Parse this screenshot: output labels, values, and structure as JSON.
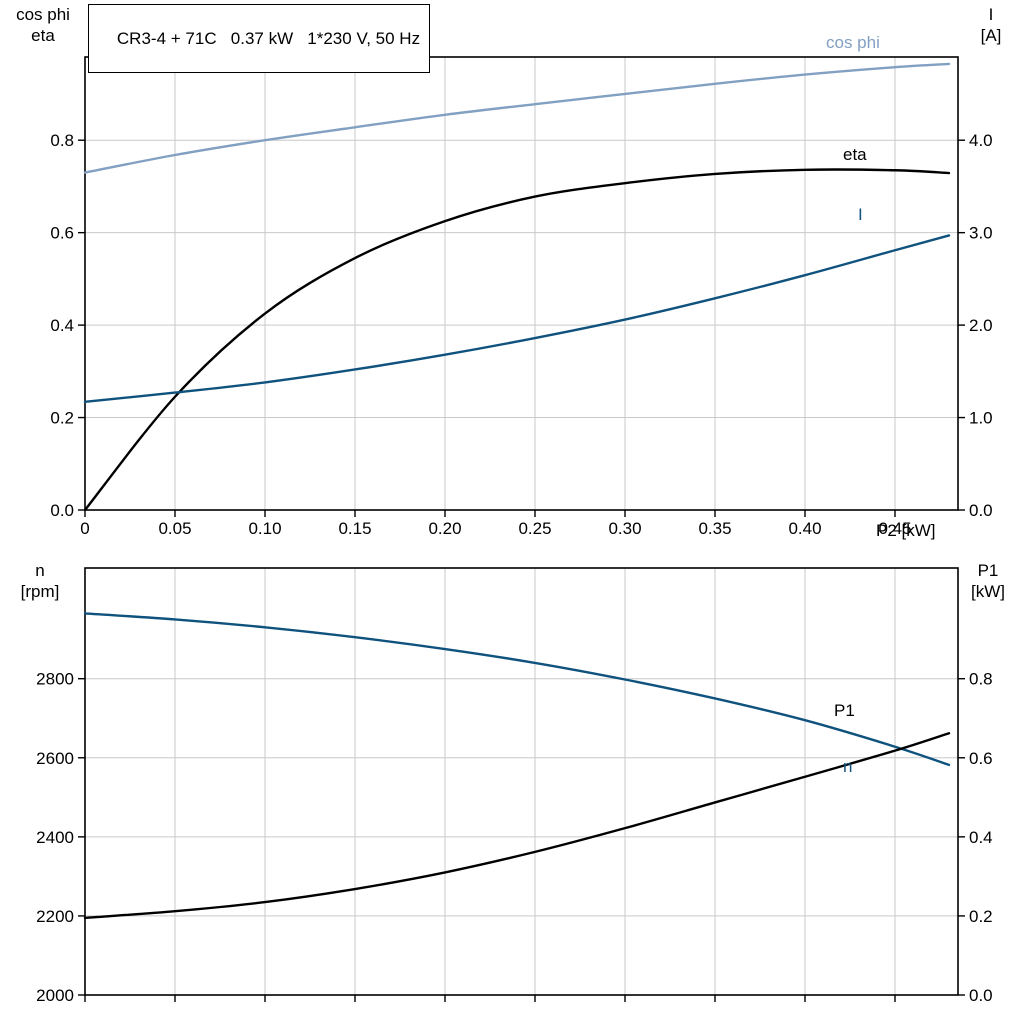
{
  "colors": {
    "light_blue": "#82a0c2",
    "dark_blue": "#0f527e",
    "black": "#000000",
    "grid": "#c9c9c9",
    "frame": "#000000"
  },
  "chart_data": [
    {
      "id": "motor-curves-top",
      "type": "line",
      "title": "CR3-4 + 71C   0.37 kW   1*230 V, 50 Hz",
      "xlabel": "P2 [kW]",
      "xlim": [
        0,
        0.485
      ],
      "x_ticks": [
        0,
        0.05,
        0.1,
        0.15,
        0.2,
        0.25,
        0.3,
        0.35,
        0.4,
        0.45
      ],
      "x_tick_labels": [
        "0",
        "0.05",
        "0.10",
        "0.15",
        "0.20",
        "0.25",
        "0.30",
        "0.35",
        "0.40",
        "0.45"
      ],
      "left_axis": {
        "title_lines": [
          "cos phi",
          "eta"
        ],
        "lim": [
          0,
          0.98
        ],
        "ticks": [
          0,
          0.2,
          0.4,
          0.6,
          0.8
        ],
        "tick_labels": [
          "0.0",
          "0.2",
          "0.4",
          "0.6",
          "0.8"
        ]
      },
      "right_axis": {
        "title_lines": [
          "I",
          "[A]"
        ],
        "lim": [
          0,
          4.9
        ],
        "ticks": [
          0,
          1,
          2,
          3,
          4
        ],
        "tick_labels": [
          "0.0",
          "1.0",
          "2.0",
          "3.0",
          "4.0"
        ]
      },
      "x": [
        0,
        0.05,
        0.1,
        0.15,
        0.2,
        0.25,
        0.3,
        0.35,
        0.4,
        0.45,
        0.48
      ],
      "series": [
        {
          "name": "cos phi",
          "axis": "left",
          "color": "#82a0c2",
          "values": [
            0.73,
            0.768,
            0.8,
            0.828,
            0.855,
            0.878,
            0.9,
            0.922,
            0.942,
            0.958,
            0.965
          ]
        },
        {
          "name": "eta",
          "axis": "left",
          "color": "#000000",
          "values": [
            0,
            0.245,
            0.425,
            0.545,
            0.625,
            0.678,
            0.707,
            0.727,
            0.736,
            0.735,
            0.729
          ]
        },
        {
          "name": "I",
          "axis": "right",
          "color": "#0f527e",
          "values": [
            1.17,
            1.27,
            1.38,
            1.52,
            1.68,
            1.86,
            2.06,
            2.29,
            2.54,
            2.81,
            2.97
          ]
        }
      ]
    },
    {
      "id": "motor-curves-bottom",
      "type": "line",
      "title": "",
      "xlabel": "",
      "xlim": [
        0,
        0.485
      ],
      "x_ticks": [
        0,
        0.05,
        0.1,
        0.15,
        0.2,
        0.25,
        0.3,
        0.35,
        0.4,
        0.45
      ],
      "x_tick_labels": [],
      "left_axis": {
        "title_lines": [
          "n",
          "[rpm]"
        ],
        "lim": [
          2000,
          3080
        ],
        "ticks": [
          2000,
          2200,
          2400,
          2600,
          2800
        ],
        "tick_labels": [
          "2000",
          "2200",
          "2400",
          "2600",
          "2800"
        ]
      },
      "right_axis": {
        "title_lines": [
          "P1",
          "[kW]"
        ],
        "lim": [
          0,
          1.08
        ],
        "ticks": [
          0,
          0.2,
          0.4,
          0.6,
          0.8
        ],
        "tick_labels": [
          "0.0",
          "0.2",
          "0.4",
          "0.6",
          "0.8"
        ]
      },
      "x": [
        0,
        0.05,
        0.1,
        0.15,
        0.2,
        0.25,
        0.3,
        0.35,
        0.4,
        0.45,
        0.48
      ],
      "series": [
        {
          "name": "n",
          "axis": "left",
          "color": "#0f527e",
          "values": [
            2965,
            2950,
            2930,
            2905,
            2875,
            2840,
            2798,
            2750,
            2695,
            2628,
            2582
          ]
        },
        {
          "name": "P1",
          "axis": "right",
          "color": "#000000",
          "values": [
            0.195,
            0.212,
            0.235,
            0.268,
            0.31,
            0.362,
            0.422,
            0.487,
            0.552,
            0.618,
            0.662
          ]
        }
      ]
    }
  ]
}
